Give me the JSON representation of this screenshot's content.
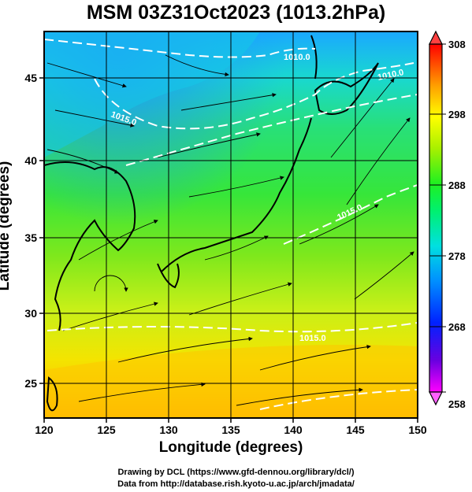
{
  "title": "MSM 03Z31Oct2023 (1013.2hPa)",
  "x_axis": {
    "label": "Longitude (degrees)",
    "ticks": [
      "120",
      "125",
      "130",
      "135",
      "140",
      "145",
      "150"
    ],
    "range": [
      120,
      150
    ]
  },
  "y_axis": {
    "label": "Latitude  (degrees)",
    "ticks": [
      "25",
      "30",
      "35",
      "40",
      "45"
    ],
    "range": [
      22.4,
      47.6
    ]
  },
  "colorbar": {
    "ticks": [
      "308",
      "298",
      "288",
      "278",
      "268",
      "258"
    ],
    "range": [
      258,
      308
    ],
    "colors": [
      "#ff00ff",
      "#4400ee",
      "#0044ff",
      "#00b0ff",
      "#00ffd0",
      "#00ff60",
      "#40ff00",
      "#c0ff00",
      "#ffff00",
      "#ffb000",
      "#ff6000",
      "#ff0000"
    ]
  },
  "contour_labels": [
    "1010.0",
    "1010.0",
    "1015.0",
    "1015.0",
    "1015.0"
  ],
  "credits": {
    "line1": "Drawing by DCL (https://www.gfd-dennou.org/library/dcl/)",
    "line2": "Data from http://database.rish.kyoto-u.ac.jp/arch/jmadata/"
  }
}
